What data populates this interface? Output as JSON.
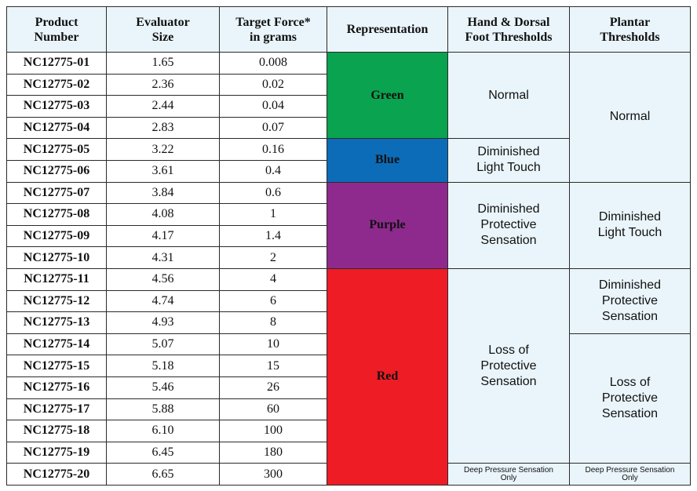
{
  "headers": {
    "product": "Product\nNumber",
    "evaluator": "Evaluator\nSize",
    "force": "Target Force*\nin grams",
    "representation": "Representation",
    "hand": "Hand & Dorsal\nFoot Thresholds",
    "plantar": "Plantar\nThresholds"
  },
  "rows": [
    {
      "product": "NC12775-01",
      "size": "1.65",
      "force": "0.008"
    },
    {
      "product": "NC12775-02",
      "size": "2.36",
      "force": "0.02"
    },
    {
      "product": "NC12775-03",
      "size": "2.44",
      "force": "0.04"
    },
    {
      "product": "NC12775-04",
      "size": "2.83",
      "force": "0.07"
    },
    {
      "product": "NC12775-05",
      "size": "3.22",
      "force": "0.16"
    },
    {
      "product": "NC12775-06",
      "size": "3.61",
      "force": "0.4"
    },
    {
      "product": "NC12775-07",
      "size": "3.84",
      "force": "0.6"
    },
    {
      "product": "NC12775-08",
      "size": "4.08",
      "force": "1"
    },
    {
      "product": "NC12775-09",
      "size": "4.17",
      "force": "1.4"
    },
    {
      "product": "NC12775-10",
      "size": "4.31",
      "force": "2"
    },
    {
      "product": "NC12775-11",
      "size": "4.56",
      "force": "4"
    },
    {
      "product": "NC12775-12",
      "size": "4.74",
      "force": "6"
    },
    {
      "product": "NC12775-13",
      "size": "4.93",
      "force": "8"
    },
    {
      "product": "NC12775-14",
      "size": "5.07",
      "force": "10"
    },
    {
      "product": "NC12775-15",
      "size": "5.18",
      "force": "15"
    },
    {
      "product": "NC12775-16",
      "size": "5.46",
      "force": "26"
    },
    {
      "product": "NC12775-17",
      "size": "5.88",
      "force": "60"
    },
    {
      "product": "NC12775-18",
      "size": "6.10",
      "force": "100"
    },
    {
      "product": "NC12775-19",
      "size": "6.45",
      "force": "180"
    },
    {
      "product": "NC12775-20",
      "size": "6.65",
      "force": "300"
    }
  ],
  "representation": [
    {
      "label": "Green",
      "color": "#0aa34f"
    },
    {
      "label": "Blue",
      "color": "#0d6cb8"
    },
    {
      "label": "Purple",
      "color": "#8e2a8e"
    },
    {
      "label": "Red",
      "color": "#ee1c25"
    }
  ],
  "hand_thresholds": {
    "normal": "Normal",
    "diminished_light_touch": "Diminished\nLight Touch",
    "diminished_protective": "Diminished\nProtective\nSensation",
    "loss_protective": "Loss of\nProtective\nSensation",
    "deep_pressure": "Deep Pressure Sensation\nOnly"
  },
  "plantar_thresholds": {
    "normal": "Normal",
    "diminished_light_touch": "Diminished\nLight Touch",
    "diminished_protective": "Diminished\nProtective\nSensation",
    "loss_protective": "Loss of\nProtective\nSensation",
    "deep_pressure": "Deep Pressure Sensation\nOnly"
  }
}
